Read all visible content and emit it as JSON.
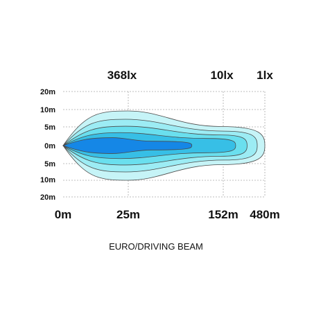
{
  "chart_data": {
    "type": "area",
    "title": "EURO/DRIVING BEAM",
    "lux_labels": [
      {
        "text": "368lx",
        "distance_m": 25
      },
      {
        "text": "10lx",
        "distance_m": 152
      },
      {
        "text": "1lx",
        "distance_m": 480
      }
    ],
    "x_ticks": [
      "0m",
      "25m",
      "152m",
      "480m"
    ],
    "y_ticks": [
      "20m",
      "10m",
      "5m",
      "0m",
      "5m",
      "10m",
      "20m"
    ],
    "grid": true,
    "contours": [
      {
        "color": "#c6f4f7",
        "tip": 480,
        "tipRatio": 0.68,
        "head": 25,
        "headHalf": 10,
        "bulge": 1.0
      },
      {
        "color": "#9cecf4",
        "tip": 420,
        "tipRatio": 0.75,
        "head": 24,
        "headHalf": 7.5,
        "bulge": 0.95
      },
      {
        "color": "#6adfee",
        "tip": 340,
        "tipRatio": 0.78,
        "head": 24,
        "headHalf": 5.4,
        "bulge": 0.9
      },
      {
        "color": "#37bfe6",
        "tip": 250,
        "tipRatio": 0.75,
        "head": 22,
        "headHalf": 3.6,
        "bulge": 0.85
      },
      {
        "color": "#1587e6",
        "tip": 110,
        "tipRatio": 0.5,
        "head": 19,
        "headHalf": 2.2,
        "bulge": 0.8
      }
    ]
  }
}
